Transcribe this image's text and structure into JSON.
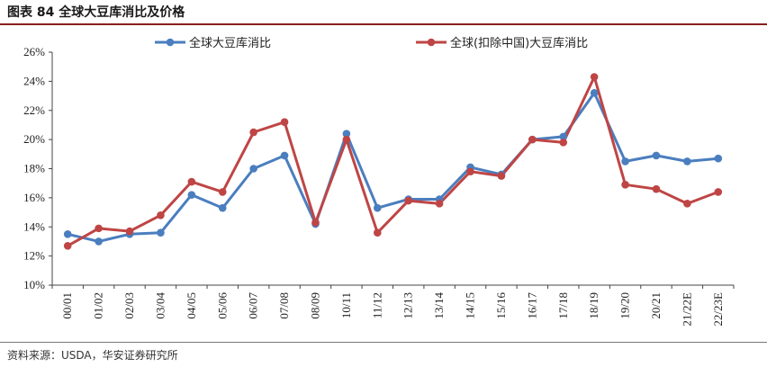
{
  "header": {
    "title": "图表 84 全球大豆库消比及价格"
  },
  "footer": {
    "source": "资料来源：USDA，华安证券研究所"
  },
  "chart_data": {
    "type": "line",
    "title": "",
    "xlabel": "",
    "ylabel": "",
    "ylim": [
      10,
      26
    ],
    "yticks": [
      "10%",
      "12%",
      "14%",
      "16%",
      "18%",
      "20%",
      "22%",
      "24%",
      "26%"
    ],
    "grid": false,
    "legend": "top",
    "categories": [
      "00/01",
      "01/02",
      "02/03",
      "03/04",
      "04/05",
      "05/06",
      "06/07",
      "07/08",
      "08/09",
      "10/11",
      "11/12",
      "12/13",
      "13/14",
      "14/15",
      "15/16",
      "16/17",
      "17/18",
      "18/19",
      "19/20",
      "20/21",
      "21/22E",
      "22/23E"
    ],
    "series": [
      {
        "name": "全球大豆库消比",
        "color": "#4a7ebf",
        "values": [
          13.5,
          13.0,
          13.5,
          13.6,
          16.2,
          15.3,
          18.0,
          18.9,
          14.2,
          20.4,
          15.3,
          15.9,
          15.9,
          18.1,
          17.6,
          20.0,
          20.2,
          23.2,
          18.5,
          18.9,
          18.5,
          18.7
        ]
      },
      {
        "name": "全球(扣除中国)大豆库消比",
        "color": "#bf4545",
        "values": [
          12.7,
          13.9,
          13.7,
          14.8,
          17.1,
          16.4,
          20.5,
          21.2,
          14.3,
          20.0,
          13.6,
          15.8,
          15.6,
          17.8,
          17.5,
          20.0,
          19.8,
          24.3,
          16.9,
          16.6,
          15.6,
          16.4
        ]
      }
    ]
  }
}
